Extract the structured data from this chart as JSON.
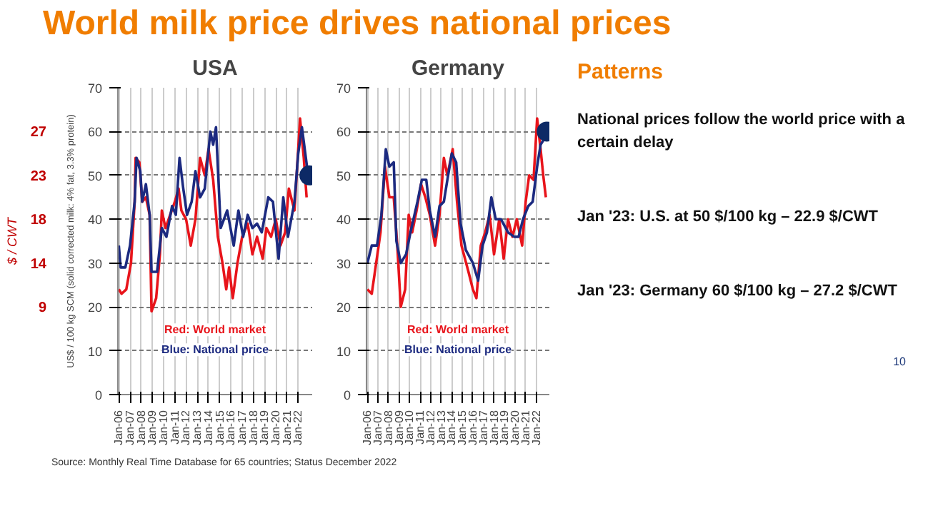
{
  "chart_data": [
    {
      "type": "line",
      "title": "USA",
      "ylabel": "US$ / 100 kg SCM (solid corrected milk: 4% fat, 3.3% protein)",
      "y2label": "$ / CWT",
      "y2lim": [
        0,
        31.75
      ],
      "y2ticks": [
        {
          "value": 9.07,
          "label": "9"
        },
        {
          "value": 13.61,
          "label": "14"
        },
        {
          "value": 18.14,
          "label": "18"
        },
        {
          "value": 22.68,
          "label": "23"
        },
        {
          "value": 27.22,
          "label": "27"
        }
      ],
      "xlim": [
        "2005-12",
        "2023-04"
      ],
      "xticks": [
        {
          "value": "2006-01",
          "label": "Jan-06"
        },
        {
          "value": "2007-01",
          "label": "Jan-07"
        },
        {
          "value": "2008-01",
          "label": "Jan-08"
        },
        {
          "value": "2009-01",
          "label": "Jan-09"
        },
        {
          "value": "2010-01",
          "label": "Jan-10"
        },
        {
          "value": "2011-01",
          "label": "Jan-11"
        },
        {
          "value": "2012-01",
          "label": "Jan-12"
        },
        {
          "value": "2013-01",
          "label": "Jan-13"
        },
        {
          "value": "2014-01",
          "label": "Jan-14"
        },
        {
          "value": "2015-01",
          "label": "Jan-15"
        },
        {
          "value": "2016-01",
          "label": "Jan-16"
        },
        {
          "value": "2017-01",
          "label": "Jan-17"
        },
        {
          "value": "2018-01",
          "label": "Jan-18"
        },
        {
          "value": "2019-01",
          "label": "Jan-19"
        },
        {
          "value": "2020-01",
          "label": "Jan-20"
        },
        {
          "value": "2021-01",
          "label": "Jan-21"
        },
        {
          "value": "2022-01",
          "label": "Jan-22"
        }
      ],
      "ylim": [
        0,
        70
      ],
      "yticks": [
        0,
        10,
        20,
        30,
        40,
        50,
        60,
        70
      ],
      "grid": true,
      "annotations": [
        "Red: World market",
        "Blue: National price"
      ],
      "series": [
        {
          "type": "line",
          "color": "#e8141b",
          "x": [
            "2006-01",
            "2006-04",
            "2006-09",
            "2007-02",
            "2007-06",
            "2007-07",
            "2007-11",
            "2008-02",
            "2008-06",
            "2008-10",
            "2008-12",
            "2009-05",
            "2009-09",
            "2009-11",
            "2010-03",
            "2010-08",
            "2011-01",
            "2011-05",
            "2011-08",
            "2012-01",
            "2012-06",
            "2012-11",
            "2013-04",
            "2013-09",
            "2014-01",
            "2014-06",
            "2014-11",
            "2015-04",
            "2015-08",
            "2015-11",
            "2016-03",
            "2016-08",
            "2017-01",
            "2017-07",
            "2017-12",
            "2018-05",
            "2018-11",
            "2019-03",
            "2019-08",
            "2020-01",
            "2020-06",
            "2020-11",
            "2021-03",
            "2021-09",
            "2022-01",
            "2022-03",
            "2022-07",
            "2022-10"
          ],
          "values": [
            24,
            23,
            24,
            30,
            44,
            54,
            53,
            44,
            45,
            41,
            19,
            22,
            32,
            42,
            38,
            41,
            44,
            47,
            42,
            40,
            34,
            40,
            54,
            50,
            56,
            49,
            36,
            30,
            24,
            29,
            22,
            30,
            36,
            39,
            32,
            36,
            31,
            38,
            36,
            40,
            34,
            37,
            47,
            42,
            56,
            63,
            54,
            45
          ]
        },
        {
          "type": "line",
          "color": "#1c2a80",
          "x": [
            "2006-01",
            "2006-03",
            "2006-08",
            "2007-01",
            "2007-06",
            "2007-08",
            "2007-12",
            "2008-02",
            "2008-06",
            "2008-10",
            "2008-12",
            "2009-06",
            "2009-11",
            "2010-04",
            "2010-10",
            "2011-02",
            "2011-06",
            "2011-10",
            "2012-02",
            "2012-07",
            "2012-11",
            "2013-04",
            "2013-09",
            "2014-03",
            "2014-06",
            "2014-09",
            "2015-02",
            "2015-09",
            "2016-04",
            "2016-09",
            "2017-02",
            "2017-07",
            "2017-12",
            "2018-05",
            "2018-10",
            "2019-05",
            "2019-10",
            "2020-04",
            "2020-09",
            "2021-02",
            "2021-09",
            "2022-01",
            "2022-05",
            "2022-08",
            "2022-11"
          ],
          "values": [
            34,
            29,
            29,
            34,
            44,
            54,
            51,
            44,
            48,
            41,
            28,
            28,
            38,
            36,
            43,
            41,
            54,
            47,
            41,
            44,
            51,
            45,
            47,
            60,
            57,
            61,
            38,
            42,
            34,
            42,
            36,
            41,
            38,
            39,
            37,
            45,
            44,
            31,
            45,
            36,
            44,
            55,
            61,
            56,
            51
          ]
        },
        {
          "type": "scatter",
          "color": "#0d2a66",
          "marker": "circle",
          "x": [
            "2023-01"
          ],
          "values": [
            50
          ]
        }
      ]
    },
    {
      "type": "line",
      "title": "Germany",
      "xlim": [
        "2005-12",
        "2023-04"
      ],
      "xticks": [
        {
          "value": "2006-01",
          "label": "Jan-06"
        },
        {
          "value": "2007-01",
          "label": "Jan-07"
        },
        {
          "value": "2008-01",
          "label": "Jan-08"
        },
        {
          "value": "2009-01",
          "label": "Jan-09"
        },
        {
          "value": "2010-01",
          "label": "Jan-10"
        },
        {
          "value": "2011-01",
          "label": "Jan-11"
        },
        {
          "value": "2012-01",
          "label": "Jan-12"
        },
        {
          "value": "2013-01",
          "label": "Jan-13"
        },
        {
          "value": "2014-01",
          "label": "Jan-14"
        },
        {
          "value": "2015-01",
          "label": "Jan-15"
        },
        {
          "value": "2016-01",
          "label": "Jan-16"
        },
        {
          "value": "2017-01",
          "label": "Jan-17"
        },
        {
          "value": "2018-01",
          "label": "Jan-18"
        },
        {
          "value": "2019-01",
          "label": "Jan-19"
        },
        {
          "value": "2020-01",
          "label": "Jan-20"
        },
        {
          "value": "2021-01",
          "label": "Jan-21"
        },
        {
          "value": "2022-01",
          "label": "Jan-22"
        }
      ],
      "ylim": [
        0,
        70
      ],
      "yticks": [
        0,
        10,
        20,
        30,
        40,
        50,
        60,
        70
      ],
      "grid": true,
      "annotations": [
        "Red: World market",
        "Blue: National price"
      ],
      "series": [
        {
          "type": "line",
          "color": "#e8141b",
          "x": [
            "2006-01",
            "2006-06",
            "2006-11",
            "2007-04",
            "2007-09",
            "2008-02",
            "2008-07",
            "2008-11",
            "2009-03",
            "2009-08",
            "2009-12",
            "2010-04",
            "2010-09",
            "2011-02",
            "2011-07",
            "2011-12",
            "2012-06",
            "2012-11",
            "2013-04",
            "2013-08",
            "2014-02",
            "2014-07",
            "2014-12",
            "2015-08",
            "2016-01",
            "2016-05",
            "2016-10",
            "2017-03",
            "2017-08",
            "2018-01",
            "2018-07",
            "2018-12",
            "2019-05",
            "2019-10",
            "2020-03",
            "2020-09",
            "2021-01",
            "2021-05",
            "2021-10",
            "2022-02",
            "2022-06",
            "2022-09",
            "2022-12"
          ],
          "values": [
            24,
            23,
            30,
            37,
            52,
            45,
            45,
            34,
            20,
            24,
            41,
            37,
            42,
            48,
            45,
            41,
            34,
            41,
            54,
            50,
            56,
            44,
            34,
            28,
            24,
            22,
            34,
            37,
            41,
            32,
            40,
            31,
            40,
            36,
            40,
            34,
            44,
            50,
            49,
            63,
            56,
            50,
            45
          ]
        },
        {
          "type": "line",
          "color": "#1c2a80",
          "x": [
            "2006-01",
            "2006-06",
            "2006-12",
            "2007-05",
            "2007-10",
            "2008-02",
            "2008-07",
            "2008-10",
            "2009-03",
            "2009-09",
            "2010-02",
            "2010-10",
            "2011-03",
            "2011-08",
            "2011-12",
            "2012-06",
            "2012-11",
            "2013-04",
            "2013-08",
            "2014-01",
            "2014-06",
            "2014-11",
            "2015-05",
            "2016-01",
            "2016-07",
            "2016-12",
            "2017-05",
            "2017-10",
            "2018-03",
            "2018-09",
            "2019-05",
            "2019-12",
            "2020-05",
            "2020-10",
            "2021-04",
            "2021-09",
            "2022-02",
            "2022-06",
            "2022-09"
          ],
          "values": [
            30,
            34,
            34,
            41,
            56,
            52,
            53,
            35,
            30,
            32,
            37,
            44,
            49,
            49,
            42,
            36,
            43,
            44,
            49,
            55,
            53,
            39,
            33,
            30,
            26,
            34,
            37,
            45,
            40,
            40,
            37,
            36,
            36,
            40,
            43,
            44,
            52,
            57,
            58
          ]
        },
        {
          "type": "scatter",
          "color": "#0d2a66",
          "marker": "circle",
          "x": [
            "2023-01"
          ],
          "values": [
            60
          ]
        }
      ]
    },
    {
      "type": "other",
      "title": "World milk price drives national prices",
      "subtitle": "Patterns",
      "annotations": [
        "National prices follow the world price with a certain delay",
        "Jan '23: U.S. at 50 $/100 kg – 22.9 $/CWT",
        "Jan '23: Germany 60 $/100 kg – 27.2 $/CWT",
        "Source: Monthly Real Time Database for 65 countries; Status December 2022",
        "10"
      ]
    }
  ]
}
